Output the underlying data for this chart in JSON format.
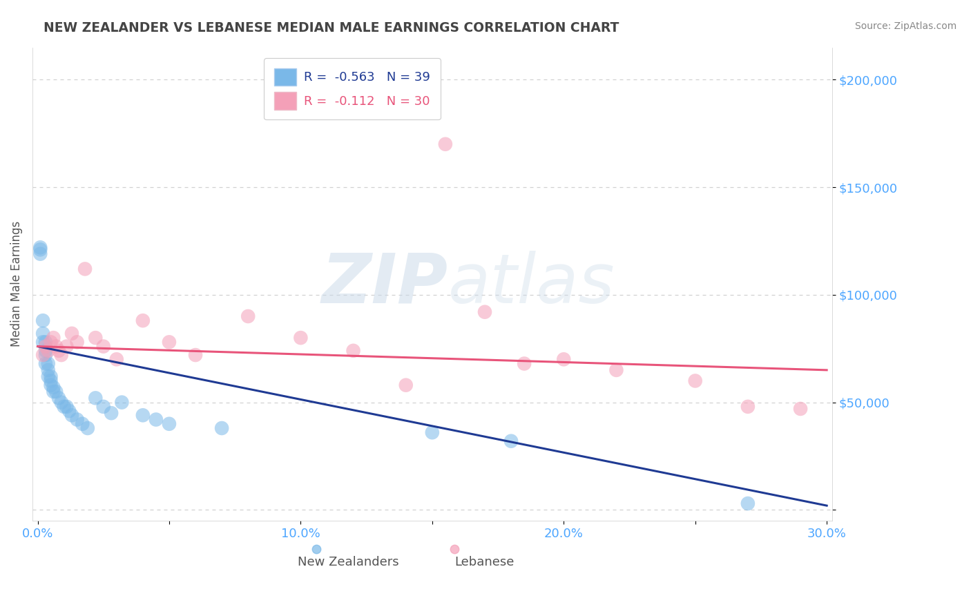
{
  "title": "NEW ZEALANDER VS LEBANESE MEDIAN MALE EARNINGS CORRELATION CHART",
  "source": "Source: ZipAtlas.com",
  "xlabel_blue": "New Zealanders",
  "xlabel_pink": "Lebanese",
  "ylabel": "Median Male Earnings",
  "r_blue": -0.563,
  "n_blue": 39,
  "r_pink": -0.112,
  "n_pink": 30,
  "xlim": [
    -0.002,
    0.302
  ],
  "ylim": [
    -5000,
    215000
  ],
  "yticks": [
    0,
    50000,
    100000,
    150000,
    200000
  ],
  "ytick_labels": [
    "",
    "$50,000",
    "$100,000",
    "$150,000",
    "$200,000"
  ],
  "xticks": [
    0.0,
    0.05,
    0.1,
    0.15,
    0.2,
    0.25,
    0.3
  ],
  "xtick_labels": [
    "0.0%",
    "",
    "10.0%",
    "",
    "20.0%",
    "",
    "30.0%"
  ],
  "color_blue": "#7ab8e8",
  "color_pink": "#f4a0b8",
  "line_blue": "#1f3a93",
  "line_pink": "#e8547a",
  "title_color": "#444444",
  "axis_label_color": "#555555",
  "tick_color": "#4da6ff",
  "watermark_zip": "ZIP",
  "watermark_atlas": "atlas",
  "blue_x": [
    0.001,
    0.001,
    0.001,
    0.002,
    0.002,
    0.002,
    0.003,
    0.003,
    0.003,
    0.003,
    0.004,
    0.004,
    0.004,
    0.005,
    0.005,
    0.005,
    0.006,
    0.006,
    0.007,
    0.008,
    0.009,
    0.01,
    0.011,
    0.012,
    0.013,
    0.015,
    0.017,
    0.019,
    0.022,
    0.025,
    0.028,
    0.032,
    0.04,
    0.045,
    0.05,
    0.07,
    0.15,
    0.18,
    0.27
  ],
  "blue_y": [
    122000,
    121000,
    119000,
    88000,
    82000,
    78000,
    78000,
    74000,
    72000,
    68000,
    68000,
    65000,
    62000,
    62000,
    60000,
    58000,
    57000,
    55000,
    55000,
    52000,
    50000,
    48000,
    48000,
    46000,
    44000,
    42000,
    40000,
    38000,
    52000,
    48000,
    45000,
    50000,
    44000,
    42000,
    40000,
    38000,
    36000,
    32000,
    3000
  ],
  "pink_x": [
    0.002,
    0.003,
    0.004,
    0.005,
    0.006,
    0.007,
    0.008,
    0.009,
    0.011,
    0.013,
    0.015,
    0.018,
    0.022,
    0.025,
    0.03,
    0.04,
    0.05,
    0.06,
    0.08,
    0.1,
    0.12,
    0.14,
    0.155,
    0.17,
    0.185,
    0.2,
    0.22,
    0.25,
    0.27,
    0.29
  ],
  "pink_y": [
    72000,
    76000,
    74000,
    78000,
    80000,
    76000,
    74000,
    72000,
    76000,
    82000,
    78000,
    112000,
    80000,
    76000,
    70000,
    88000,
    78000,
    72000,
    90000,
    80000,
    74000,
    58000,
    170000,
    92000,
    68000,
    70000,
    65000,
    60000,
    48000,
    47000
  ]
}
